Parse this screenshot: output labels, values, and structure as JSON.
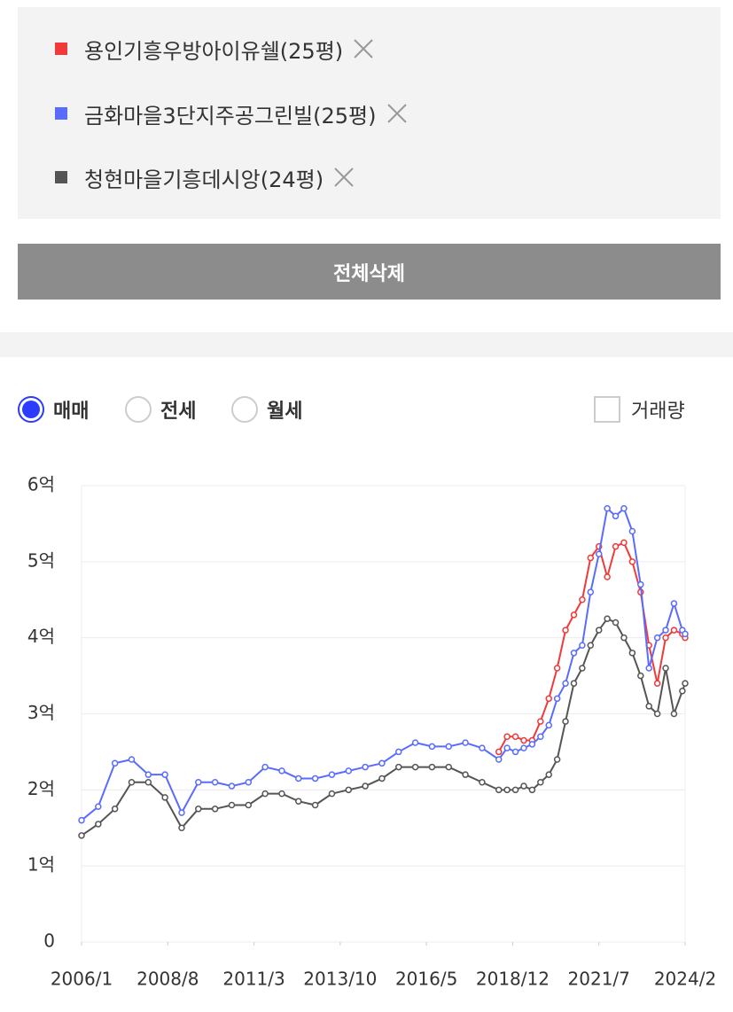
{
  "delete_all_button": "전체삭제",
  "chart_options": {
    "radios": [
      {
        "label": "매매",
        "selected": true
      },
      {
        "label": "전세",
        "selected": false
      },
      {
        "label": "월세",
        "selected": false
      }
    ],
    "volume_checkbox": {
      "label": "거래량",
      "checked": false
    }
  },
  "chart_data": {
    "type": "line",
    "grid": true,
    "x": [
      "2006/1",
      "2006/7",
      "2007/1",
      "2007/7",
      "2008/1",
      "2008/7",
      "2009/1",
      "2009/7",
      "2010/1",
      "2010/7",
      "2011/1",
      "2011/7",
      "2012/1",
      "2012/7",
      "2013/1",
      "2013/7",
      "2014/1",
      "2014/7",
      "2015/1",
      "2015/7",
      "2016/1",
      "2016/7",
      "2017/1",
      "2017/7",
      "2018/1",
      "2018/7",
      "2018/10",
      "2019/1",
      "2019/4",
      "2019/7",
      "2019/10",
      "2020/1",
      "2020/4",
      "2020/7",
      "2020/10",
      "2021/1",
      "2021/4",
      "2021/7",
      "2021/10",
      "2022/1",
      "2022/4",
      "2022/7",
      "2022/10",
      "2023/1",
      "2023/4",
      "2023/7",
      "2023/10",
      "2024/1",
      "2024/2"
    ],
    "xlim": [
      "2006/1",
      "2024/2"
    ],
    "xticks": [
      "2006/1",
      "2008/8",
      "2011/3",
      "2013/10",
      "2016/5",
      "2018/12",
      "2021/7",
      "2024/2"
    ],
    "ylim": [
      0,
      6
    ],
    "yticks": [
      0,
      {
        "value": 1,
        "label": "1억"
      },
      {
        "value": 2,
        "label": "2억"
      },
      {
        "value": 3,
        "label": "3억"
      },
      {
        "value": 4,
        "label": "4억"
      },
      {
        "value": 5,
        "label": "5억"
      },
      {
        "value": 6,
        "label": "6억"
      }
    ],
    "series": [
      {
        "name": "용인기흥우방아이유쉘(25평)",
        "color": "#f03a3a",
        "values": [
          null,
          null,
          null,
          null,
          null,
          null,
          null,
          null,
          null,
          null,
          null,
          null,
          null,
          null,
          null,
          null,
          null,
          null,
          null,
          null,
          null,
          null,
          null,
          null,
          null,
          2.5,
          2.7,
          2.7,
          2.65,
          2.65,
          2.9,
          3.2,
          3.6,
          4.1,
          4.3,
          4.5,
          5.05,
          5.2,
          4.8,
          5.2,
          5.25,
          5.0,
          4.6,
          3.9,
          3.4,
          4.0,
          4.1,
          4.05,
          4.0
        ]
      },
      {
        "name": "금화마을3단지주공그린빌(25평)",
        "color": "#5a6bff",
        "values": [
          1.6,
          1.78,
          2.35,
          2.4,
          2.2,
          2.2,
          1.7,
          2.1,
          2.1,
          2.05,
          2.1,
          2.3,
          2.25,
          2.15,
          2.15,
          2.2,
          2.25,
          2.3,
          2.35,
          2.5,
          2.62,
          2.57,
          2.57,
          2.62,
          2.55,
          2.4,
          2.55,
          2.5,
          2.55,
          2.6,
          2.7,
          2.85,
          3.2,
          3.4,
          3.8,
          3.9,
          4.6,
          5.1,
          5.7,
          5.6,
          5.7,
          5.4,
          4.7,
          3.6,
          4.0,
          4.1,
          4.45,
          4.1,
          4.05
        ]
      },
      {
        "name": "청현마을기흥데시앙(24평)",
        "color": "#555555",
        "values": [
          1.4,
          1.55,
          1.75,
          2.1,
          2.1,
          1.9,
          1.5,
          1.75,
          1.75,
          1.8,
          1.8,
          1.95,
          1.95,
          1.85,
          1.8,
          1.95,
          2.0,
          2.05,
          2.15,
          2.3,
          2.3,
          2.3,
          2.3,
          2.2,
          2.1,
          2.0,
          2.0,
          2.0,
          2.05,
          2.0,
          2.1,
          2.2,
          2.4,
          2.9,
          3.4,
          3.6,
          3.9,
          4.1,
          4.25,
          4.2,
          4.0,
          3.8,
          3.5,
          3.1,
          3.0,
          3.6,
          3.0,
          3.3,
          3.4
        ]
      }
    ]
  }
}
